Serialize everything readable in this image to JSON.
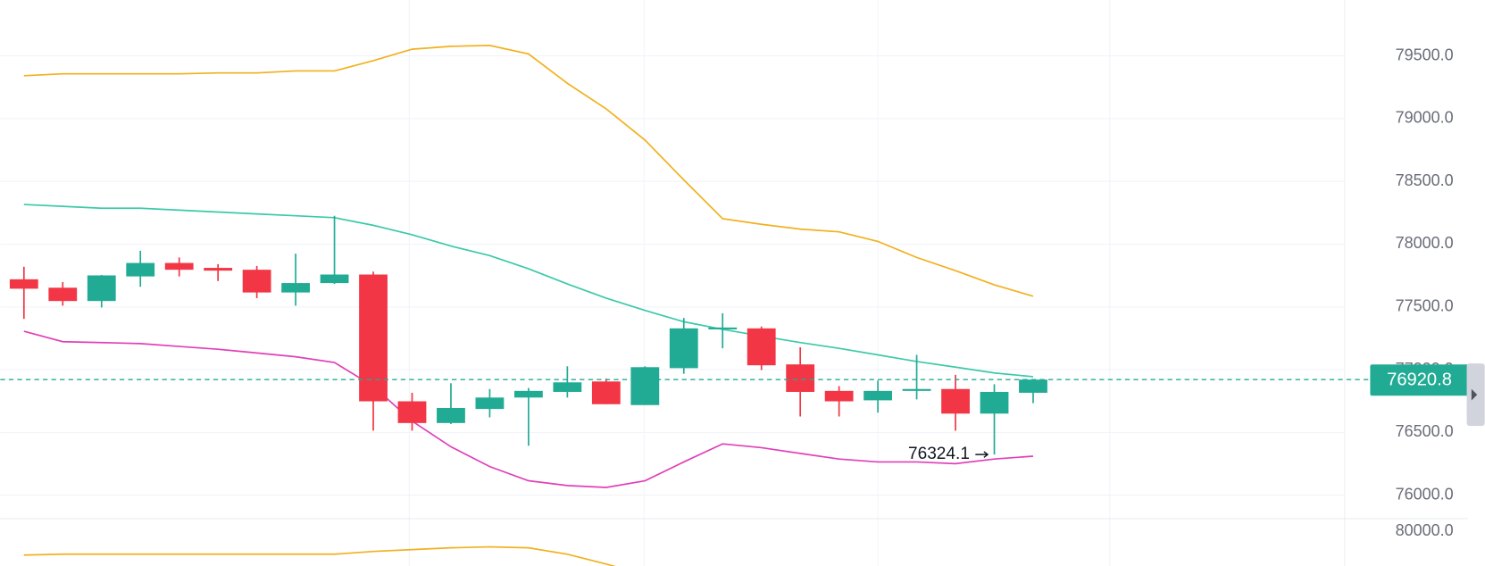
{
  "chart_data": {
    "type": "candlestick",
    "categories": [
      null,
      null,
      null,
      null,
      null,
      null,
      null,
      null,
      null,
      null,
      null,
      null,
      null,
      null,
      null,
      null,
      null,
      null,
      null,
      null,
      null,
      null,
      null,
      null,
      null,
      null,
      null
    ],
    "open": [
      77720,
      77653,
      77547,
      77743,
      77850,
      77811,
      77796,
      77615,
      77690,
      77758,
      76748,
      76575,
      76687,
      76778,
      76823,
      76906,
      76718,
      77012,
      77321,
      77329,
      77042,
      76831,
      76756,
      76831,
      76846,
      76650,
      76816
    ],
    "high": [
      77820,
      77698,
      77755,
      77947,
      77894,
      77841,
      77826,
      77924,
      78226,
      77781,
      76816,
      76892,
      76846,
      76854,
      77027,
      76929,
      77027,
      77412,
      77450,
      77344,
      77178,
      76869,
      76914,
      77118,
      76959,
      76884,
      76920.8
    ],
    "low": [
      77405,
      77510,
      77495,
      77660,
      77743,
      77706,
      77570,
      77510,
      77683,
      76514,
      76514,
      76567,
      76620,
      76394,
      76778,
      76725,
      76718,
      76967,
      77170,
      76997,
      76627,
      76627,
      76658,
      76763,
      76514,
      76324.1,
      76733
    ],
    "close": [
      77645,
      77547,
      77751,
      77850,
      77796,
      77789,
      77615,
      77690,
      77758,
      76748,
      76575,
      76695,
      76778,
      76831,
      76899,
      76725,
      77020,
      77329,
      77336,
      77035,
      76823,
      76748,
      76831,
      76846,
      76650,
      76823,
      76920.8
    ],
    "color_up": "#22ab94",
    "color_down": "#f23645",
    "series": [
      {
        "color": "#f2b01e",
        "values": [
          79342,
          79357,
          79357,
          79357,
          79357,
          79364,
          79364,
          79380,
          79380,
          79462,
          79553,
          79576,
          79583,
          79515,
          79281,
          79078,
          78829,
          78512,
          78203,
          78158,
          78120,
          78098,
          78022,
          77894,
          77789,
          77676,
          77585
        ]
      },
      {
        "color": "#3cc9a8",
        "values": [
          78316,
          78301,
          78286,
          78286,
          78271,
          78256,
          78241,
          78226,
          78211,
          78150,
          78075,
          77985,
          77909,
          77804,
          77683,
          77570,
          77472,
          77382,
          77321,
          77268,
          77216,
          77170,
          77118,
          77065,
          77020,
          76974,
          76944
        ]
      },
      {
        "color": "#e040b8",
        "values": [
          77306,
          77223,
          77216,
          77208,
          77185,
          77163,
          77133,
          77103,
          77057,
          76869,
          76590,
          76386,
          76228,
          76115,
          76077,
          76062,
          76115,
          76265,
          76409,
          76379,
          76333,
          76288,
          76265,
          76265,
          76251,
          76288,
          76311
        ]
      }
    ],
    "ylim": [
      75813,
      79945
    ],
    "yticks": [
      {
        "value": 76000,
        "label": "76000.0"
      },
      {
        "value": 76500,
        "label": "76500.0"
      },
      {
        "value": 77000,
        "label": "77000.0"
      },
      {
        "value": 77500,
        "label": "77500.0"
      },
      {
        "value": 78000,
        "label": "78000.0"
      },
      {
        "value": 78500,
        "label": "78500.0"
      },
      {
        "value": 79000,
        "label": "79000.0"
      },
      {
        "value": 79500,
        "label": "79500.0"
      }
    ],
    "grid": true,
    "lower_pane": {
      "ylim": [
        79713,
        80098
      ],
      "yticks": [
        {
          "value": 80000,
          "label": "80000.0"
        }
      ],
      "series": [
        {
          "color": "#f2b01e",
          "values": [
            79804,
            79811,
            79811,
            79811,
            79811,
            79811,
            79811,
            79811,
            79811,
            79834,
            79849,
            79864,
            79872,
            79864,
            79811,
            79729,
            79640,
            null,
            null,
            null,
            null,
            null,
            null,
            null,
            null,
            null,
            null
          ]
        }
      ]
    }
  }
}
